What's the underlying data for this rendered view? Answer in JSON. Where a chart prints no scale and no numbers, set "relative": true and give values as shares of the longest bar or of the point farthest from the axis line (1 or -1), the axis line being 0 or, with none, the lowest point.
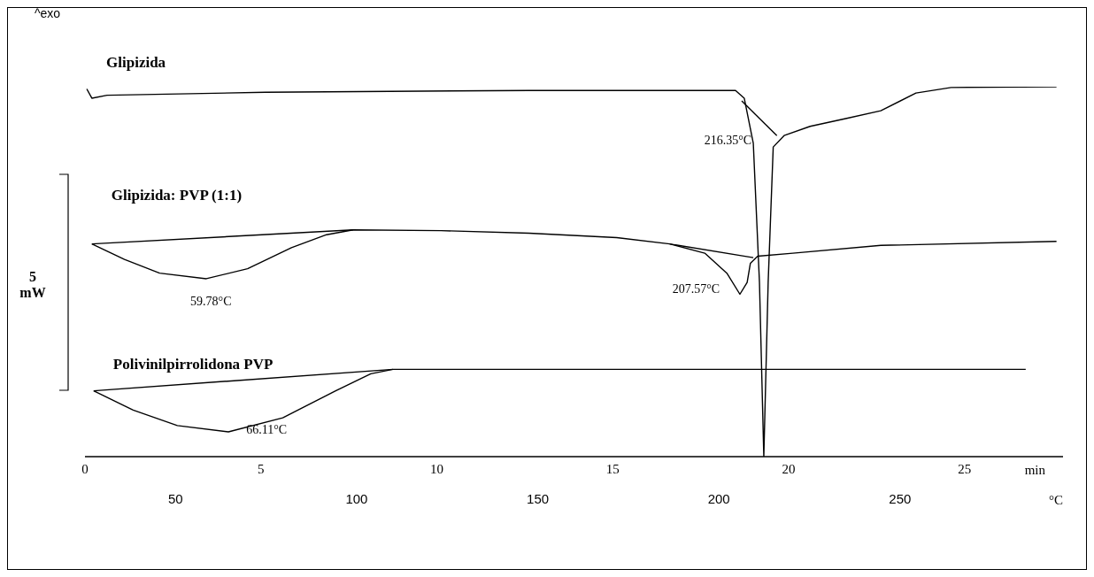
{
  "chart_data": {
    "type": "line",
    "relative": true,
    "xlabel": "°C",
    "x2label": "min",
    "xlim": [
      25,
      295
    ],
    "xticks": [
      50,
      100,
      150,
      200,
      250
    ],
    "x2lim": [
      0,
      27.8
    ],
    "x2ticks": [
      0,
      5,
      10,
      15,
      20,
      25
    ],
    "grid": false,
    "legend": false,
    "marker": "none",
    "line_style": "solid",
    "annotations": [
      "^exo",
      "5 mW",
      {
        "text": "216.35°C",
        "x": 216.35,
        "y": 0.868
      },
      {
        "text": "59.78°C",
        "x": 59.78,
        "y": 0.481
      },
      {
        "text": "207.57°C",
        "x": 207.57,
        "y": 0.467
      },
      {
        "text": "66.11°C",
        "x": 66.11,
        "y": 0.071
      }
    ],
    "series": [
      {
        "name": "Glipizida",
        "color": "#000000",
        "x": [
          25.5,
          26.9,
          31.1,
          74.8,
          147.6,
          204.6,
          207,
          209.5,
          211.2,
          212.4,
          213.6,
          215,
          218,
          225.2,
          235,
          244.7,
          254.4,
          264.1,
          293.2
        ],
        "values": [
          0.994,
          0.969,
          0.977,
          0.985,
          0.99,
          0.99,
          0.969,
          0.847,
          0.471,
          0,
          0.471,
          0.837,
          0.868,
          0.893,
          0.914,
          0.935,
          0.983,
          0.998,
          1
        ]
      },
      {
        "name": "Glipizida: PVP (1:1)",
        "color": "#000000",
        "x": [
          26.9,
          35.9,
          45.6,
          58.5,
          69.9,
          82,
          91.7,
          99,
          123.3,
          147.6,
          171.8,
          186.4,
          196.1,
          202.2,
          205.8,
          207.8,
          208.7,
          210.7,
          220.4,
          244.7,
          293.2
        ],
        "values": [
          0.575,
          0.533,
          0.496,
          0.481,
          0.508,
          0.565,
          0.6,
          0.613,
          0.611,
          0.604,
          0.592,
          0.575,
          0.55,
          0.496,
          0.439,
          0.471,
          0.523,
          0.542,
          0.55,
          0.571,
          0.582
        ]
      },
      {
        "name": "Polivinilpirrolidona PVP",
        "color": "#000000",
        "x": [
          27.4,
          38.3,
          50.5,
          64.6,
          79.6,
          94.2,
          103.9,
          110,
          171.8,
          220.4,
          284.7
        ],
        "values": [
          0.178,
          0.126,
          0.084,
          0.067,
          0.105,
          0.178,
          0.224,
          0.236,
          0.236,
          0.236,
          0.236
        ]
      },
      {
        "color": "#000000",
        "x": [
          26.9,
          99
        ],
        "values": [
          0.575,
          0.613
        ]
      },
      {
        "color": "#000000",
        "x": [
          186.4,
          209.5
        ],
        "values": [
          0.575,
          0.538
        ]
      },
      {
        "color": "#000000",
        "x": [
          27.4,
          110
        ],
        "values": [
          0.178,
          0.236
        ]
      },
      {
        "color": "#000000",
        "x": [
          206.3,
          216
        ],
        "values": [
          0.962,
          0.868
        ]
      }
    ]
  }
}
